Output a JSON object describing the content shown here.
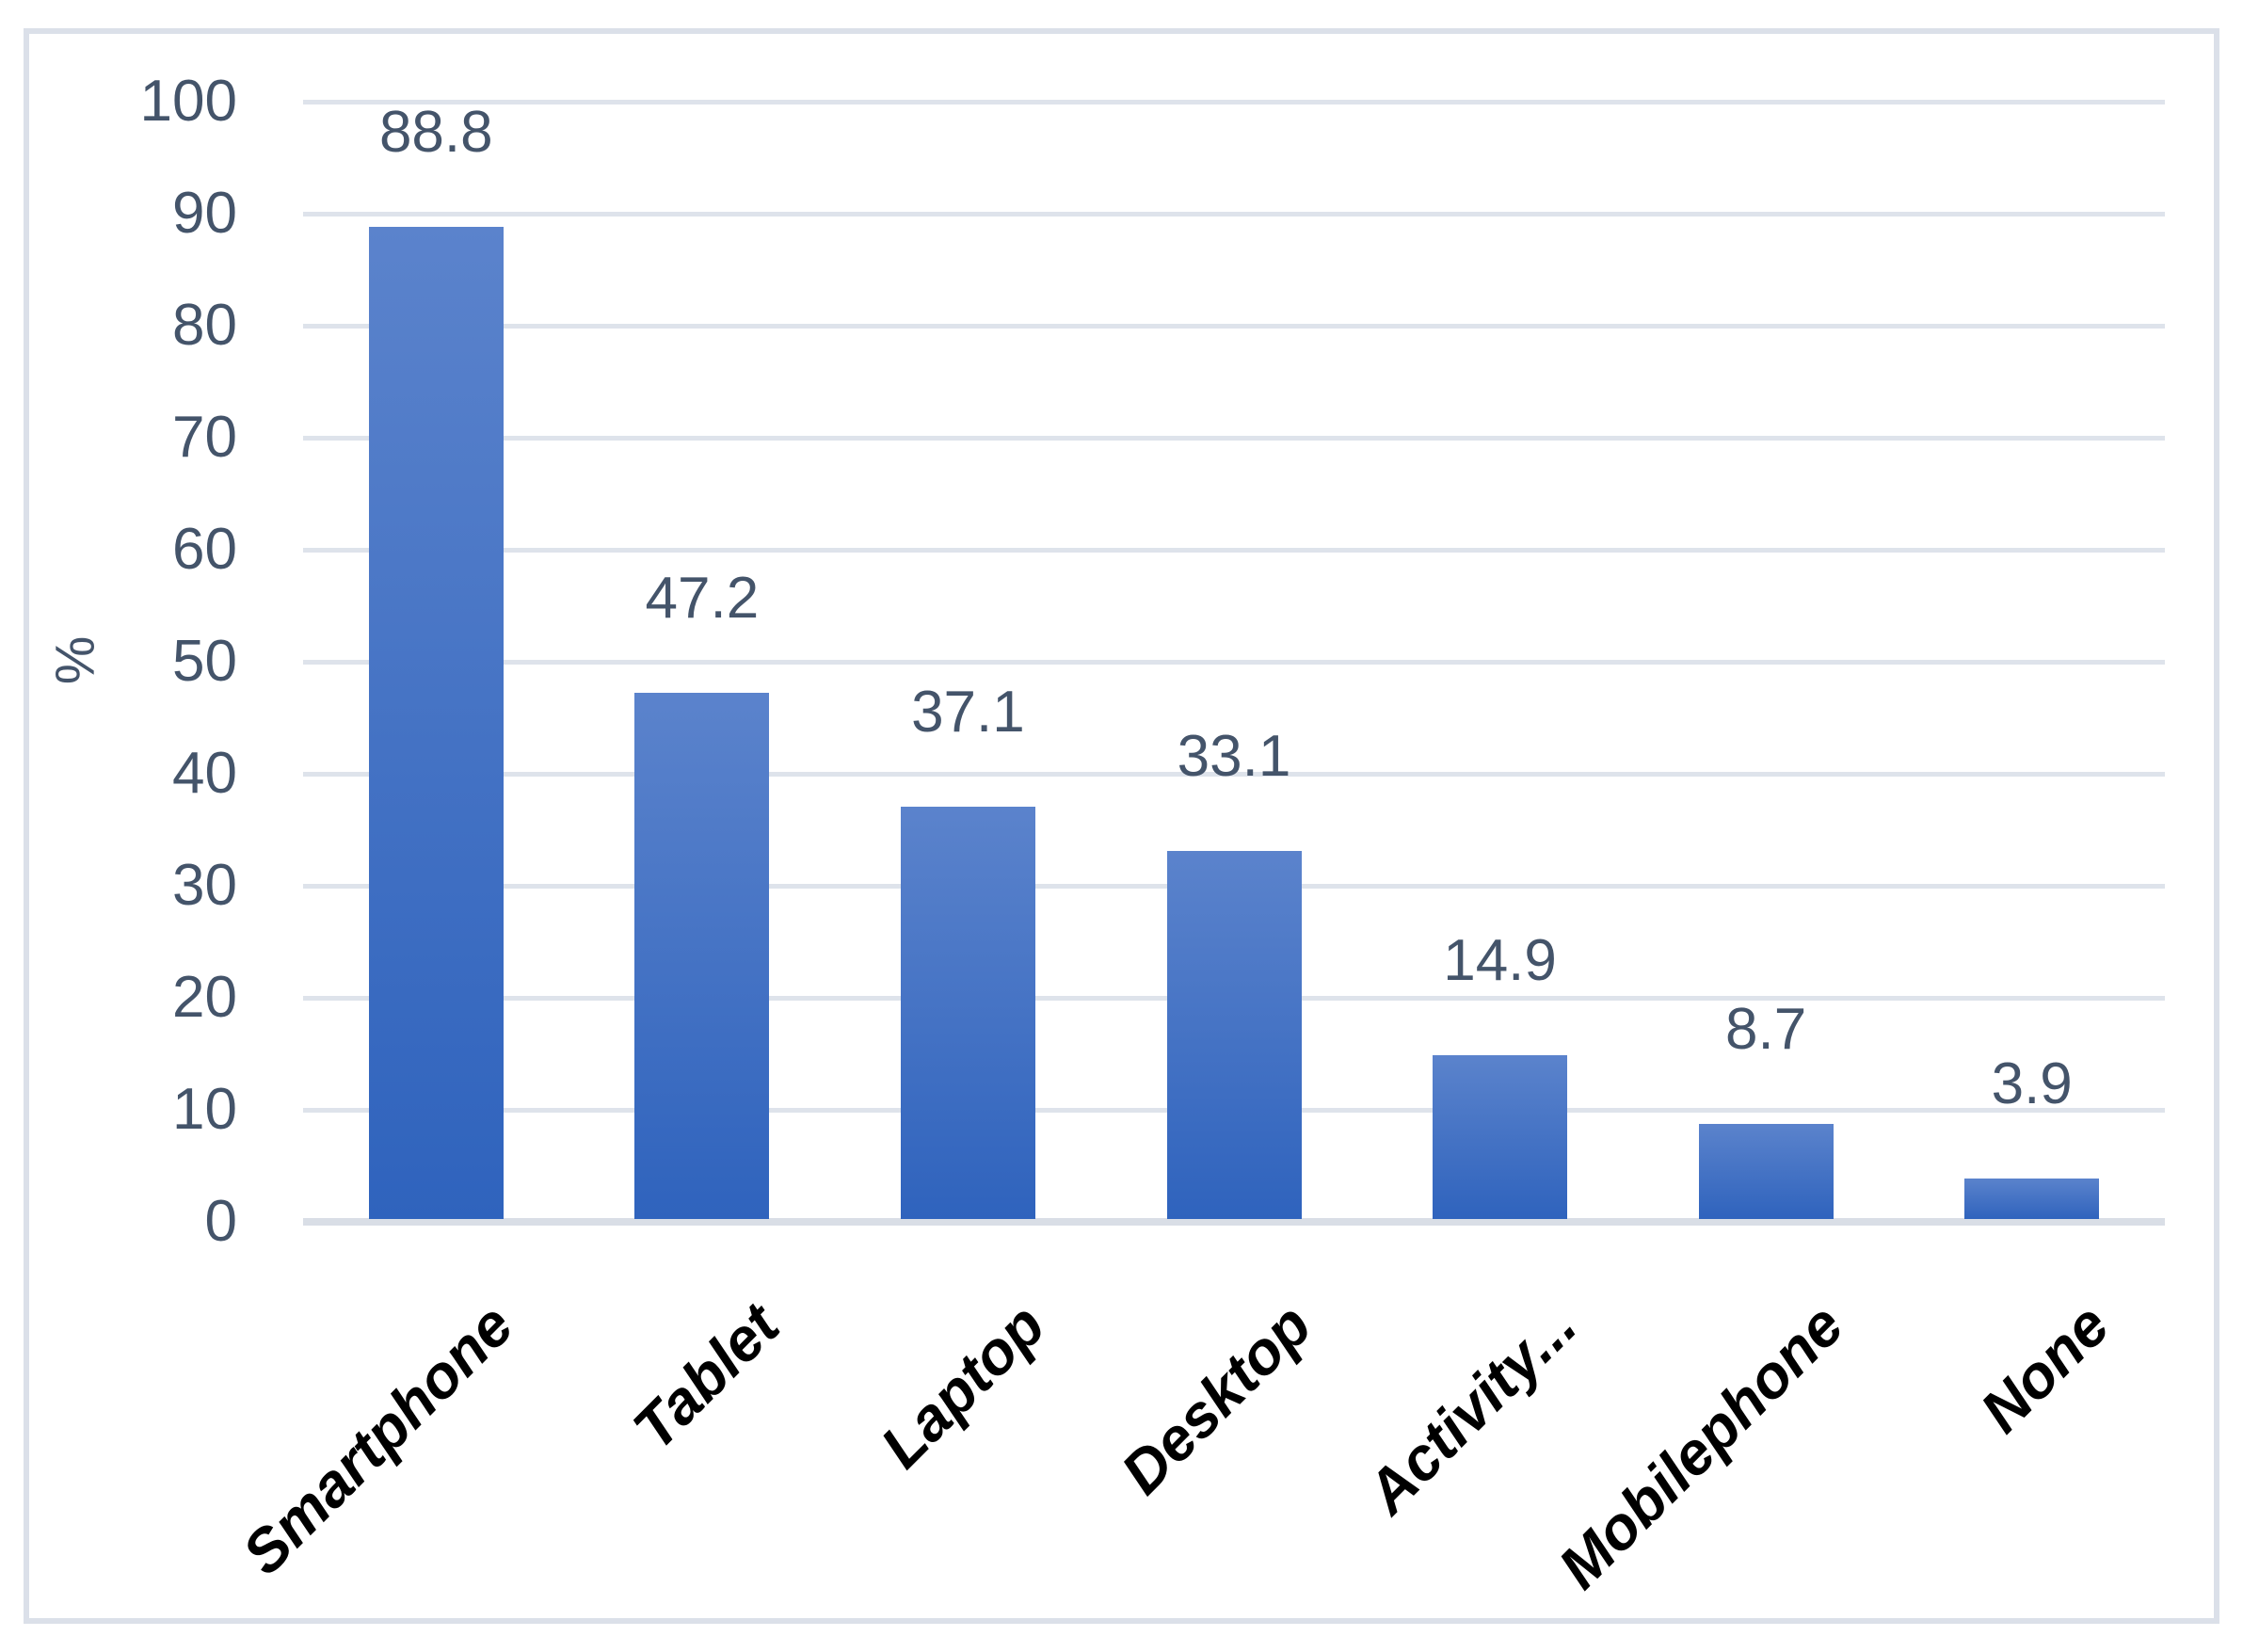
{
  "chart_data": {
    "type": "bar",
    "title": "",
    "categories": [
      "Smartphone",
      "Tablet",
      "Laptop",
      "Desktop",
      "Activity...",
      "Mobilephone",
      "None"
    ],
    "values": [
      88.8,
      47.2,
      37.1,
      33.1,
      14.9,
      8.7,
      3.9
    ],
    "data_labels": [
      "88.8",
      "47.2",
      "37.1",
      "33.1",
      "14.9",
      "8.7",
      "3.9"
    ],
    "xlabel": "",
    "ylabel": "%",
    "ylim": [
      0,
      100
    ],
    "yticks": [
      0,
      10,
      20,
      30,
      40,
      50,
      60,
      70,
      80,
      90,
      100
    ],
    "grid": "horizontal",
    "legend_position": "none",
    "colors": {
      "bar_gradient_top": "#5B83CC",
      "bar_gradient_bottom": "#2F63BD",
      "gridline": "#DEE3EB",
      "baseline": "#D9DEE6",
      "axis_text": "#44546A",
      "category_text": "#000000",
      "frame_border": "#DBE0E9",
      "background": "#FFFFFF"
    }
  }
}
